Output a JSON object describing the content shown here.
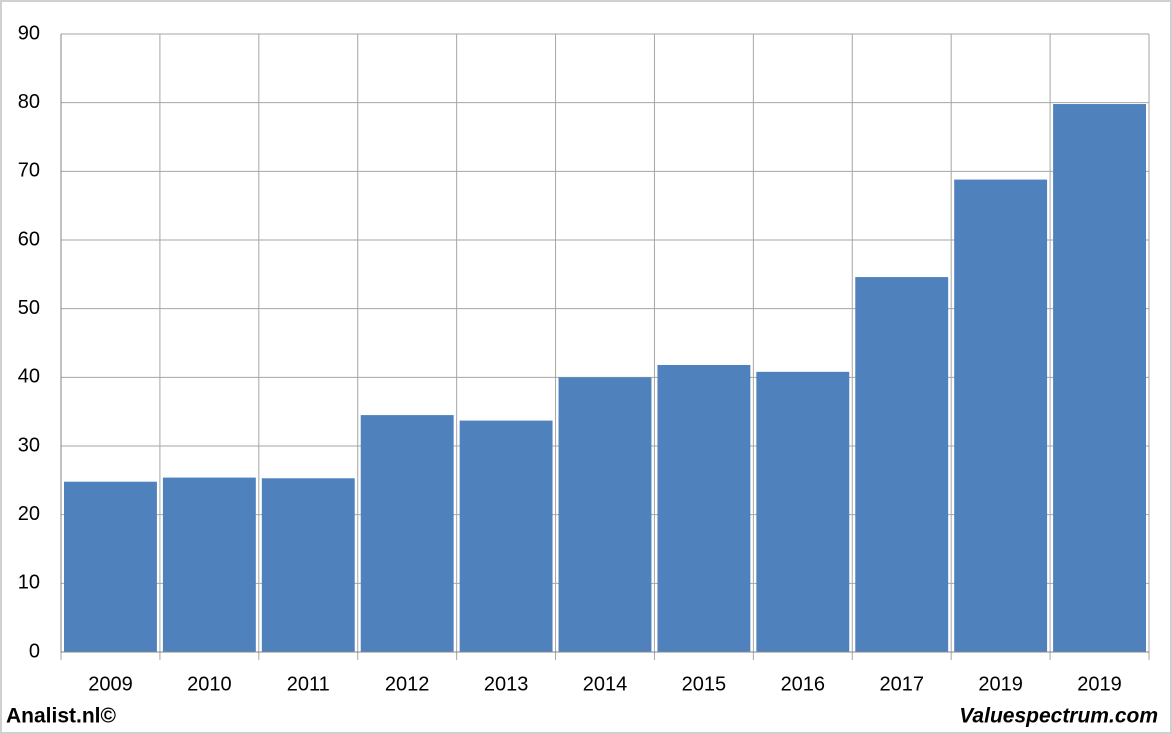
{
  "chart_data": {
    "type": "bar",
    "categories": [
      "2009",
      "2010",
      "2011",
      "2012",
      "2013",
      "2014",
      "2015",
      "2016",
      "2017",
      "2019",
      "2019"
    ],
    "values": [
      24.8,
      25.4,
      25.3,
      34.5,
      33.7,
      40.0,
      41.8,
      40.8,
      54.6,
      68.8,
      79.8
    ],
    "color": "#4f81bd",
    "ylim": [
      0,
      90
    ],
    "yticks": [
      0,
      10,
      20,
      30,
      40,
      50,
      60,
      70,
      80,
      90
    ],
    "grid": true,
    "annotations": [
      "Analist.nl©",
      "Valuespectrum.com"
    ]
  }
}
